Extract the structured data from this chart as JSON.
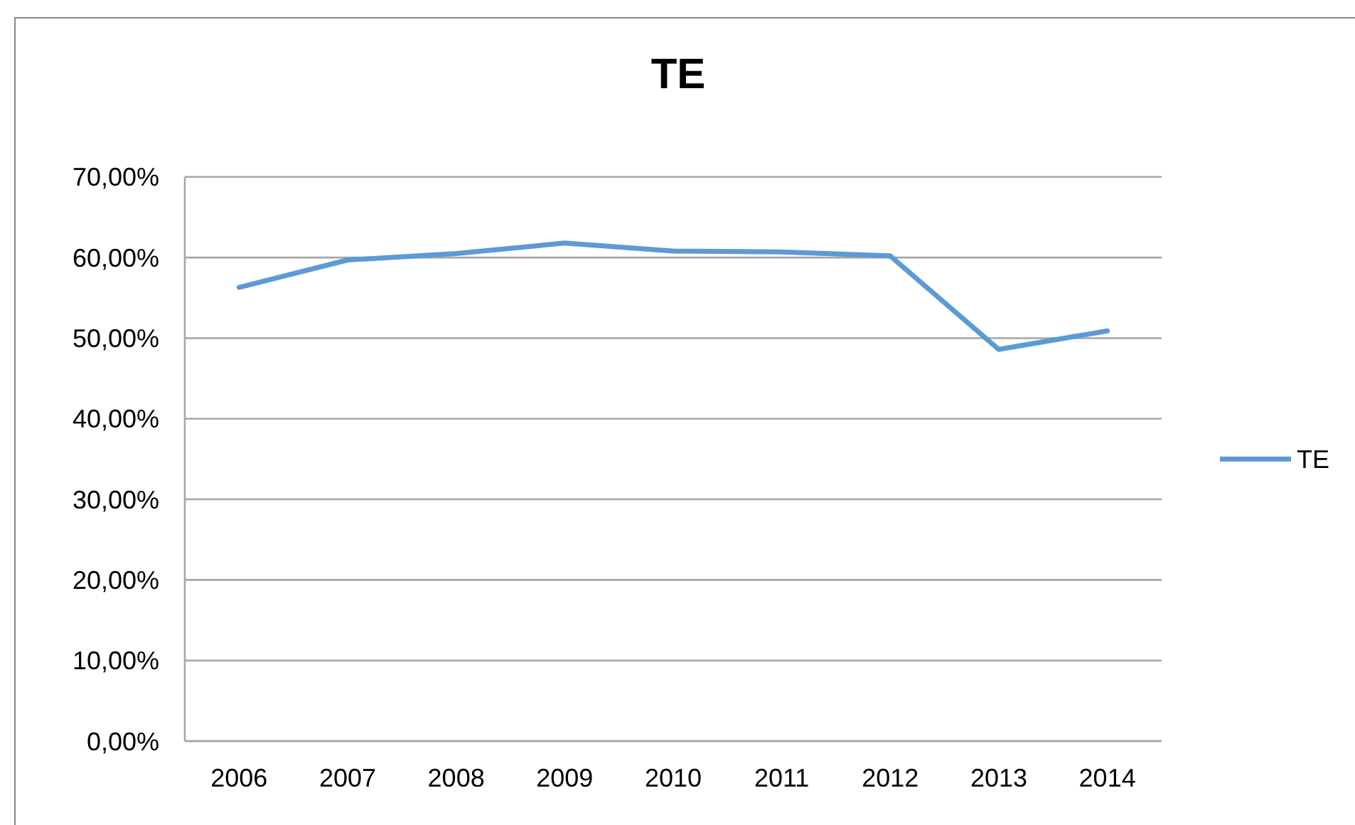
{
  "chart_data": {
    "type": "line",
    "title": "TE",
    "categories": [
      "2006",
      "2007",
      "2008",
      "2009",
      "2010",
      "2011",
      "2012",
      "2013",
      "2014"
    ],
    "series": [
      {
        "name": "TE",
        "color": "#5b9bd5",
        "values": [
          56.3,
          59.7,
          60.5,
          61.8,
          60.8,
          60.7,
          60.2,
          48.6,
          50.9
        ]
      }
    ],
    "ylim": [
      0,
      70
    ],
    "yticks": [
      {
        "value": 0,
        "label": "0,00%"
      },
      {
        "value": 10,
        "label": "10,00%"
      },
      {
        "value": 20,
        "label": "20,00%"
      },
      {
        "value": 30,
        "label": "30,00%"
      },
      {
        "value": 40,
        "label": "40,00%"
      },
      {
        "value": 50,
        "label": "50,00%"
      },
      {
        "value": 60,
        "label": "60,00%"
      },
      {
        "value": 70,
        "label": "70,00%"
      }
    ],
    "grid": "y",
    "legend": "right",
    "marker": "none",
    "line_style": "solid"
  }
}
